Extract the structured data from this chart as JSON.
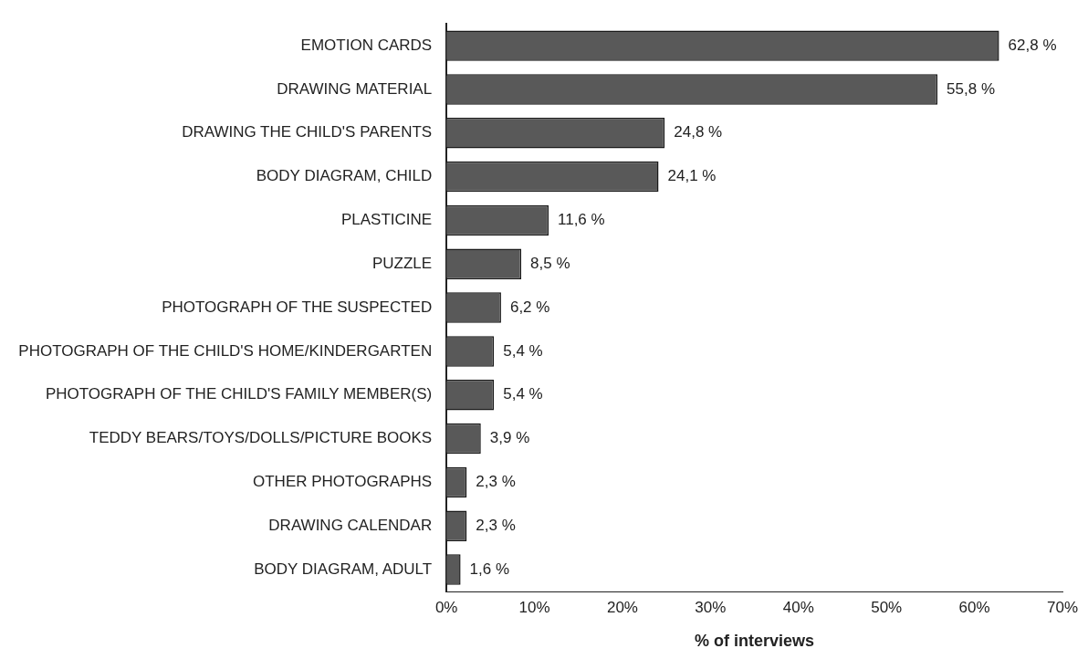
{
  "chart_data": {
    "type": "bar",
    "orientation": "horizontal",
    "xlabel": "% of interviews",
    "categories": [
      "EMOTION CARDS",
      "DRAWING MATERIAL",
      "DRAWING THE CHILD'S PARENTS",
      "BODY DIAGRAM, CHILD",
      "PLASTICINE",
      "PUZZLE",
      "PHOTOGRAPH OF THE SUSPECTED",
      "PHOTOGRAPH OF THE CHILD'S HOME/KINDERGARTEN",
      "PHOTOGRAPH OF THE CHILD'S FAMILY MEMBER(S)",
      "TEDDY BEARS/TOYS/DOLLS/PICTURE BOOKS",
      "OTHER PHOTOGRAPHS",
      "DRAWING CALENDAR",
      "BODY DIAGRAM, ADULT"
    ],
    "values": [
      62.8,
      55.8,
      24.8,
      24.1,
      11.6,
      8.5,
      6.2,
      5.4,
      5.4,
      3.9,
      2.3,
      2.3,
      1.6
    ],
    "value_labels": [
      "62,8 %",
      "55,8 %",
      "24,8 %",
      "24,1 %",
      "11,6 %",
      "8,5 %",
      "6,2 %",
      "5,4 %",
      "5,4 %",
      "3,9 %",
      "2,3 %",
      "2,3 %",
      "1,6 %"
    ],
    "color": "#595959",
    "xlim": [
      0,
      70
    ],
    "xticks": [
      {
        "value": 0,
        "label": "0%"
      },
      {
        "value": 10,
        "label": "10%"
      },
      {
        "value": 20,
        "label": "20%"
      },
      {
        "value": 30,
        "label": "30%"
      },
      {
        "value": 40,
        "label": "40%"
      },
      {
        "value": 50,
        "label": "50%"
      },
      {
        "value": 60,
        "label": "60%"
      },
      {
        "value": 70,
        "label": "70%"
      }
    ],
    "grid": false,
    "legend": false
  }
}
